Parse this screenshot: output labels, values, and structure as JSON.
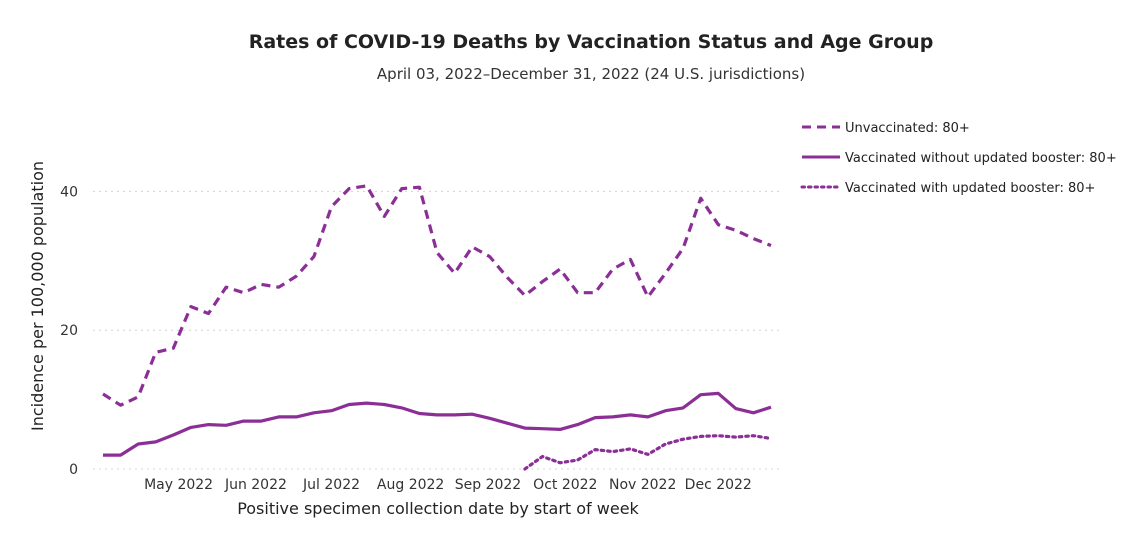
{
  "chart_data": {
    "type": "line",
    "title": "Rates of COVID-19 Deaths by Vaccination Status and Age Group",
    "subtitle": "April 03, 2022–December 31, 2022 (24 U.S. jurisdictions)",
    "xlabel": "Positive specimen collection date by start of week",
    "ylabel": "Incidence per 100,000 population",
    "ylim": [
      0,
      50
    ],
    "yticks": [
      0,
      20,
      40
    ],
    "grid": true,
    "legend_position": "top-right",
    "x": [
      "2022-04-03",
      "2022-04-10",
      "2022-04-17",
      "2022-04-24",
      "2022-05-01",
      "2022-05-08",
      "2022-05-15",
      "2022-05-22",
      "2022-05-29",
      "2022-06-05",
      "2022-06-12",
      "2022-06-19",
      "2022-06-26",
      "2022-07-03",
      "2022-07-10",
      "2022-07-17",
      "2022-07-24",
      "2022-07-31",
      "2022-08-07",
      "2022-08-14",
      "2022-08-21",
      "2022-08-28",
      "2022-09-04",
      "2022-09-11",
      "2022-09-18",
      "2022-09-25",
      "2022-10-02",
      "2022-10-09",
      "2022-10-16",
      "2022-10-23",
      "2022-10-30",
      "2022-11-06",
      "2022-11-13",
      "2022-11-20",
      "2022-11-27",
      "2022-12-04",
      "2022-12-11",
      "2022-12-18",
      "2022-12-25"
    ],
    "xticks": [
      {
        "label": "May 2022",
        "index": 4.3
      },
      {
        "label": "Jun 2022",
        "index": 8.7
      },
      {
        "label": "Jul 2022",
        "index": 13
      },
      {
        "label": "Aug 2022",
        "index": 17.5
      },
      {
        "label": "Sep 2022",
        "index": 21.9
      },
      {
        "label": "Oct 2022",
        "index": 26.3
      },
      {
        "label": "Nov 2022",
        "index": 30.7
      },
      {
        "label": "Dec 2022",
        "index": 35
      }
    ],
    "series": [
      {
        "name": "Unvaccinated: 80+",
        "style": "dashed",
        "color": "#8B2F97",
        "values": [
          10.8,
          9.2,
          10.4,
          16.8,
          17.4,
          23.4,
          22.4,
          26.2,
          25.4,
          26.6,
          26.2,
          27.8,
          30.6,
          37.8,
          40.4,
          40.8,
          36.4,
          40.4,
          40.6,
          31.2,
          28.2,
          32.0,
          30.6,
          27.6,
          25.0,
          27.0,
          28.8,
          25.4,
          25.4,
          28.8,
          30.2,
          24.8,
          28.2,
          31.8,
          39.0,
          35.2,
          34.4,
          33.2,
          32.2
        ]
      },
      {
        "name": "Vaccinated without updated booster: 80+",
        "style": "solid",
        "color": "#8B2F97",
        "values": [
          2.0,
          2.0,
          3.6,
          3.9,
          4.9,
          6.0,
          6.4,
          6.3,
          6.9,
          6.9,
          7.5,
          7.5,
          8.1,
          8.4,
          9.3,
          9.5,
          9.3,
          8.8,
          8.0,
          7.8,
          7.8,
          7.9,
          7.3,
          6.6,
          5.9,
          5.8,
          5.7,
          6.4,
          7.4,
          7.5,
          7.8,
          7.5,
          8.4,
          8.8,
          10.7,
          10.9,
          8.7,
          8.1,
          8.9
        ]
      },
      {
        "name": "Vaccinated with updated booster: 80+",
        "style": "dotted",
        "color": "#8B2F97",
        "values": [
          null,
          null,
          null,
          null,
          null,
          null,
          null,
          null,
          null,
          null,
          null,
          null,
          null,
          null,
          null,
          null,
          null,
          null,
          null,
          null,
          null,
          null,
          null,
          null,
          0.0,
          1.8,
          0.9,
          1.3,
          2.8,
          2.5,
          2.9,
          2.1,
          3.6,
          4.3,
          4.7,
          4.8,
          4.6,
          4.8,
          4.4
        ]
      }
    ]
  }
}
